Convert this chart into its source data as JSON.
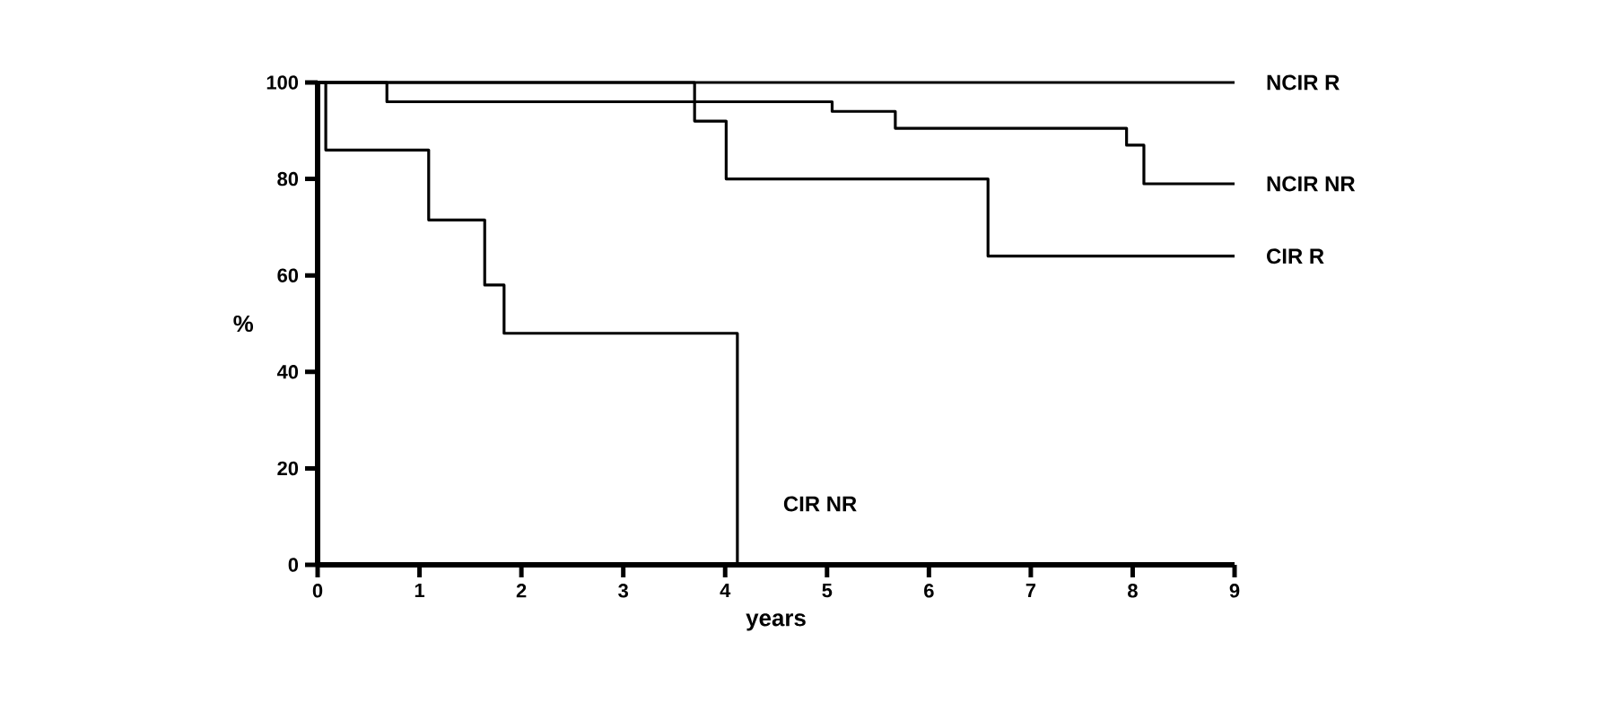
{
  "chart_data": {
    "type": "step",
    "xlabel": "years",
    "ylabel": "%",
    "xlim": [
      0,
      9
    ],
    "ylim": [
      0,
      100
    ],
    "xticks": [
      0,
      1,
      2,
      3,
      4,
      5,
      6,
      7,
      8,
      9
    ],
    "yticks": [
      0,
      20,
      40,
      60,
      80,
      100
    ],
    "marker": "none",
    "line_style": "solid",
    "grid": false,
    "series": [
      {
        "name": "NCIR R",
        "color": "#000000",
        "x": [
          0,
          9
        ],
        "values": [
          100,
          100
        ]
      },
      {
        "name": "NCIR NR",
        "color": "#000000",
        "x": [
          0,
          0.68,
          5.05,
          5.67,
          7.94,
          8.11,
          9
        ],
        "values": [
          100,
          96,
          94,
          90.5,
          87,
          79,
          79
        ]
      },
      {
        "name": "CIR R",
        "color": "#000000",
        "x": [
          0,
          3.7,
          4.01,
          6.58,
          9
        ],
        "values": [
          100,
          92,
          80,
          64,
          64
        ]
      },
      {
        "name": "CIR NR",
        "color": "#000000",
        "x": [
          0,
          0.08,
          1.09,
          1.64,
          1.83,
          4.12
        ],
        "values": [
          100,
          86,
          71.5,
          58,
          48,
          0
        ]
      }
    ]
  }
}
